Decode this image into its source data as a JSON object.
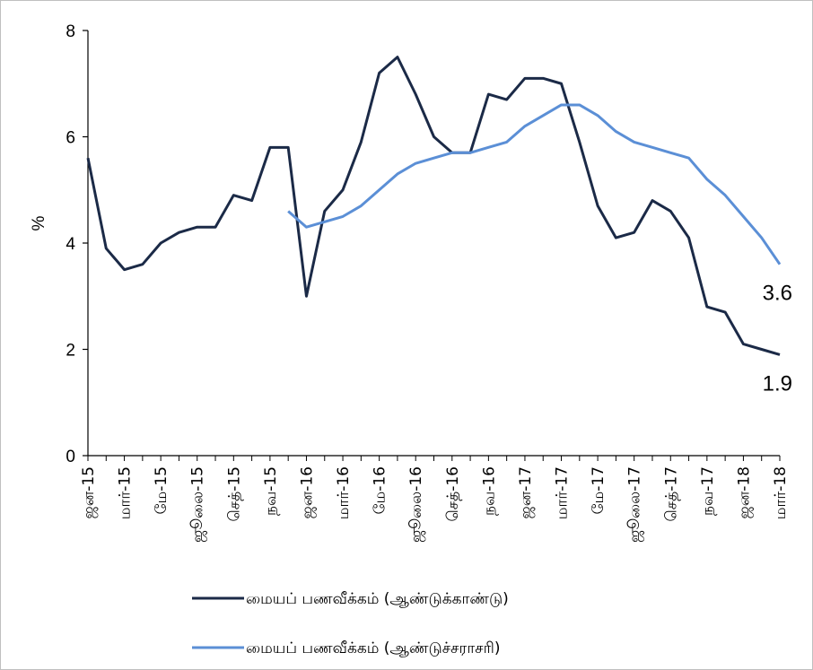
{
  "chart_data": {
    "type": "line",
    "ylabel": "%",
    "ylim": [
      0,
      8
    ],
    "yticks": [
      "0",
      "2",
      "4",
      "6",
      "8"
    ],
    "x": [
      "ஜன-15",
      "பெப்-15",
      "மார்-15",
      "ஏப்-15",
      "மே-15",
      "ஜூன்-15",
      "ஜூலை-15",
      "ஓக-15",
      "செத்-15",
      "ஒக்-15",
      "நவ-15",
      "டிச-15",
      "ஜன-16",
      "பெப்-16",
      "மார்-16",
      "ஏப்-16",
      "மே-16",
      "ஜூன்-16",
      "ஜூலை-16",
      "ஓக-16",
      "செத்-16",
      "ஒக்-16",
      "நவ-16",
      "டிச-16",
      "ஜன-17",
      "பெப்-17",
      "மார்-17",
      "ஏப்-17",
      "மே-17",
      "ஜூன்-17",
      "ஜூலை-17",
      "ஓக-17",
      "செத்-17",
      "ஒக்-17",
      "நவ-17",
      "டிச-17",
      "ஜன-18",
      "பெப்-18",
      "மார்-18"
    ],
    "tick_labels": [
      "ஜன-15",
      "மார்-15",
      "மே-15",
      "ஜூலை-15",
      "செத்-15",
      "நவ-15",
      "ஜன-16",
      "மார்-16",
      "மே-16",
      "ஜூலை-16",
      "செத்-16",
      "நவ-16",
      "ஜன-17",
      "மார்-17",
      "மே-17",
      "ஜூலை-17",
      "செத்-17",
      "நவ-17",
      "ஜன-18",
      "மார்-18"
    ],
    "series": [
      {
        "name": "மையப் பணவீக்கம் (ஆண்டுக்காண்டு)",
        "color": "#1b2a47",
        "values": [
          5.6,
          3.9,
          3.5,
          3.6,
          4.0,
          4.2,
          4.3,
          4.3,
          4.9,
          4.8,
          5.8,
          5.8,
          3.0,
          4.6,
          5.0,
          5.9,
          7.2,
          7.5,
          6.8,
          6.0,
          5.7,
          5.7,
          6.8,
          6.7,
          7.1,
          7.1,
          7.0,
          5.9,
          4.7,
          4.1,
          4.2,
          4.8,
          4.6,
          4.1,
          2.8,
          2.7,
          2.1,
          2.0,
          1.9
        ],
        "end_label": "1.9"
      },
      {
        "name": "மையப் பணவீக்கம் (ஆண்டுச்சராசரி)",
        "color": "#5b8fd6",
        "values": [
          null,
          null,
          null,
          null,
          null,
          null,
          null,
          null,
          null,
          null,
          null,
          4.6,
          4.3,
          4.4,
          4.5,
          4.7,
          5.0,
          5.3,
          5.5,
          5.6,
          5.7,
          5.7,
          5.8,
          5.9,
          6.2,
          6.4,
          6.6,
          6.6,
          6.4,
          6.1,
          5.9,
          5.8,
          5.7,
          5.6,
          5.2,
          4.9,
          4.5,
          4.1,
          3.6
        ],
        "end_label": "3.6"
      }
    ],
    "grid": false,
    "legend_position": "bottom"
  }
}
